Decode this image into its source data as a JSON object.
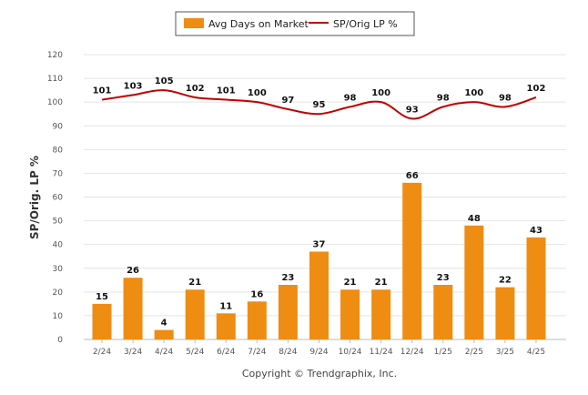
{
  "chart_data": {
    "type": "bar",
    "categories": [
      "2/24",
      "3/24",
      "4/24",
      "5/24",
      "6/24",
      "7/24",
      "8/24",
      "9/24",
      "10/24",
      "11/24",
      "12/24",
      "1/25",
      "2/25",
      "3/25",
      "4/25"
    ],
    "series": [
      {
        "name": "Avg Days on Market",
        "type": "bar",
        "color": "#EF8C12",
        "values": [
          15,
          26,
          4,
          21,
          11,
          16,
          23,
          37,
          21,
          21,
          66,
          23,
          48,
          22,
          43
        ]
      },
      {
        "name": "SP/Orig LP %",
        "type": "line",
        "color": "#C00000",
        "values": [
          101,
          103,
          105,
          102,
          101,
          100,
          97,
          95,
          98,
          100,
          93,
          98,
          100,
          98,
          102
        ]
      }
    ],
    "ylabel": "SP/Orig. LP %",
    "ylim": [
      0,
      120
    ],
    "yticks": [
      0,
      10,
      20,
      30,
      40,
      50,
      60,
      70,
      80,
      90,
      100,
      110,
      120
    ],
    "grid": true,
    "legend_position": "top-center",
    "data_labels": true
  },
  "footer": {
    "copyright": "Copyright © Trendgraphix, Inc."
  }
}
